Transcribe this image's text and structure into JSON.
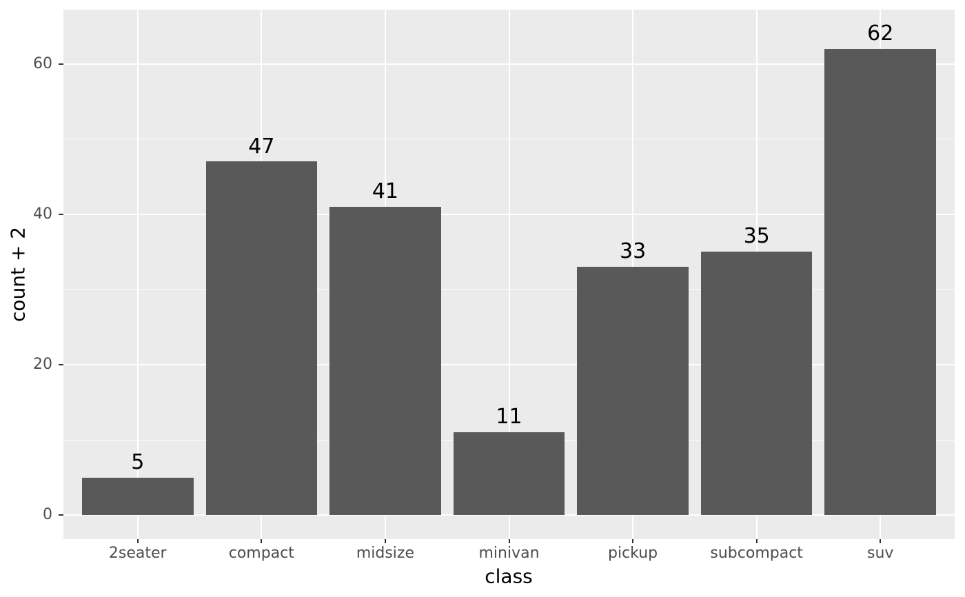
{
  "chart_data": {
    "type": "bar",
    "title": "",
    "xlabel": "class",
    "ylabel": "count + 2",
    "categories": [
      "2seater",
      "compact",
      "midsize",
      "minivan",
      "pickup",
      "subcompact",
      "suv"
    ],
    "values": [
      5,
      47,
      41,
      11,
      33,
      35,
      62
    ],
    "bar_value_labels": [
      "5",
      "47",
      "41",
      "11",
      "33",
      "35",
      "62"
    ],
    "bar_label_data_offset": 2,
    "y_major_ticks": [
      0,
      20,
      40,
      60
    ],
    "y_major_tick_labels": [
      "0",
      "20",
      "40",
      "60"
    ],
    "y_minor_ticks": [
      10,
      30,
      50
    ],
    "ylim": [
      -3.2,
      67.2
    ],
    "bar_width_fraction": 0.9,
    "legend_position": "none",
    "grid": "on",
    "colors": {
      "page_background": "#FFFFFF",
      "panel_background": "#EBEBEB",
      "grid_major": "#FFFFFF",
      "grid_minor": "#FFFFFF",
      "bar_fill": "#595959",
      "tick_label": "#4D4D4D",
      "axis_title": "#000000",
      "bar_label": "#000000",
      "tick_mark": "#333333"
    }
  }
}
